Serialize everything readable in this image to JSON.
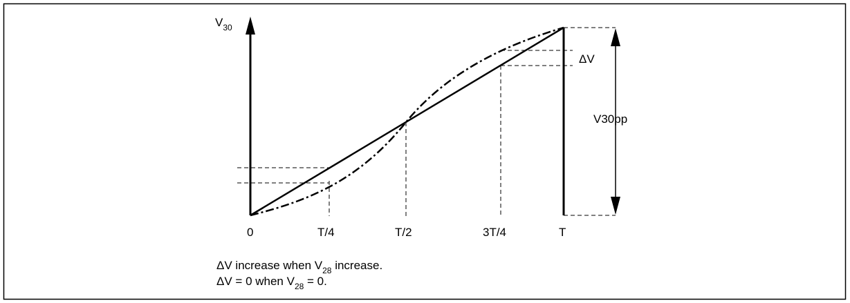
{
  "axis": {
    "y_label_main": "V",
    "y_label_sub": "30"
  },
  "ticks": [
    "0",
    "T/4",
    "T/2",
    "3T/4",
    "T"
  ],
  "labels": {
    "delta_v": "ΔV",
    "v30pp": "V30pp"
  },
  "notes": [
    {
      "pre": "ΔV increase when V",
      "sub": "28",
      "post": " increase."
    },
    {
      "pre": "ΔV = 0 when V",
      "sub": "28",
      "post": " = 0."
    }
  ]
}
